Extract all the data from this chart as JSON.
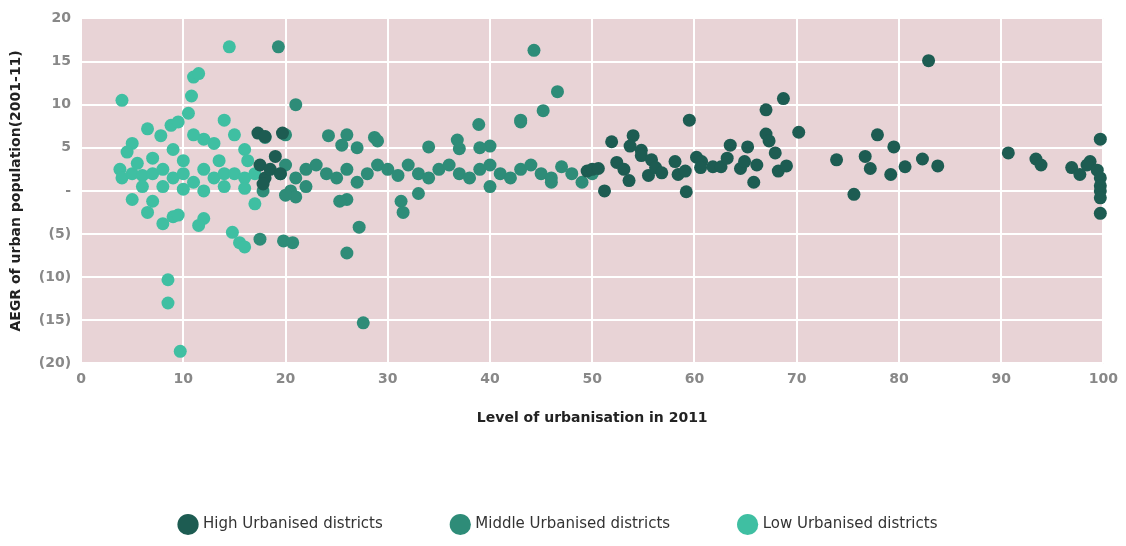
{
  "chart_data": {
    "type": "scatter",
    "xlabel": "Level of urbanisation in 2011",
    "ylabel": "AEGR of urban population(2001-11)",
    "xlim": [
      0,
      100
    ],
    "ylim": [
      -20,
      20
    ],
    "xticks": [
      0,
      10,
      20,
      30,
      40,
      50,
      60,
      70,
      80,
      90,
      100
    ],
    "yticks": [
      {
        "value": -20,
        "label": "(20)"
      },
      {
        "value": -15,
        "label": "(15)"
      },
      {
        "value": -10,
        "label": "(10)"
      },
      {
        "value": -5,
        "label": "(5)"
      },
      {
        "value": 0,
        "label": "-"
      },
      5,
      10,
      15,
      20
    ],
    "grid": true,
    "legend": "bottom",
    "marker": "circle",
    "series": [
      {
        "name": "High Urbanised districts",
        "color": "#1d5c52",
        "x": [
          17.3,
          18,
          19.7,
          17.5,
          18,
          18.5,
          19,
          19.5,
          17.8,
          49.5,
          50,
          50.6,
          51.2,
          52.4,
          53.1,
          53.6,
          55.5,
          51.9,
          54,
          53.7,
          54.8,
          54.8,
          55.8,
          56.2,
          56.8,
          58.1,
          58.4,
          59.1,
          59.2,
          59.5,
          60.2,
          60.7,
          60.6,
          61.8,
          62.6,
          63.2,
          63.5,
          64.5,
          64.9,
          65.2,
          65.8,
          66.1,
          67,
          68.7,
          67,
          67.3,
          67.9,
          68.2,
          69,
          70.2,
          73.9,
          75.6,
          76.7,
          77.2,
          77.9,
          79.2,
          79.5,
          80.6,
          82.3,
          82.9,
          83.8,
          90.7,
          93.4,
          93.9,
          96.9,
          97.7,
          98.7,
          98.4,
          99.4,
          99.7,
          99.7,
          99.7,
          99.7,
          99.7,
          99.7
        ],
        "values": [
          6.7,
          6.3,
          6.7,
          3,
          1.5,
          2.5,
          4,
          2,
          0.8,
          2.3,
          2.5,
          2.6,
          0,
          3.3,
          2.5,
          1.2,
          1.8,
          5.7,
          6.4,
          5.2,
          4.7,
          4.1,
          3.6,
          2.7,
          2.1,
          3.4,
          1.9,
          2.3,
          -0.1,
          8.2,
          3.9,
          3.4,
          2.7,
          2.8,
          2.8,
          3.8,
          5.3,
          2.6,
          3.4,
          5.1,
          1,
          3,
          9.4,
          10.7,
          6.6,
          5.8,
          4.4,
          2.3,
          2.9,
          6.8,
          3.6,
          -0.4,
          4,
          2.6,
          6.5,
          1.9,
          5.1,
          2.8,
          3.7,
          15.1,
          2.9,
          4.4,
          3.7,
          3,
          2.7,
          1.9,
          3.4,
          3,
          2.4,
          6,
          1.5,
          0.6,
          0,
          -0.8,
          -2.6
        ]
      },
      {
        "name": "Middle Urbanised districts",
        "color": "#2e8c78",
        "x": [
          19.3,
          21,
          44.3,
          46.6,
          45.2,
          43,
          43,
          38.9,
          24.2,
          26,
          28.7,
          25.5,
          27,
          29,
          34,
          36.8,
          37,
          40,
          39,
          20,
          18,
          19.5,
          20,
          21,
          22,
          23,
          24,
          25,
          26,
          27,
          28,
          29,
          30,
          31,
          32,
          33,
          34,
          35,
          36,
          37,
          38,
          39,
          40,
          41,
          42,
          43,
          44,
          45,
          46,
          47,
          48,
          49,
          50,
          20.5,
          22,
          26,
          31.3,
          31.5,
          25.3,
          27.2,
          26,
          27.6,
          21,
          33,
          40,
          46,
          17.5,
          19.8,
          20.7,
          17.8,
          20
        ],
        "values": [
          16.7,
          10,
          16.3,
          11.5,
          9.3,
          8,
          8.2,
          7.7,
          6.4,
          6.5,
          6.2,
          5.3,
          5,
          5.8,
          5.1,
          5.9,
          4.9,
          5.2,
          5,
          6.5,
          6.2,
          2,
          3,
          1.5,
          2.5,
          3,
          2,
          1.5,
          2.5,
          1,
          2,
          3,
          2.5,
          1.8,
          3,
          2,
          1.5,
          2.5,
          3,
          2,
          1.5,
          2.5,
          3,
          2,
          1.5,
          2.5,
          3,
          2,
          1.5,
          2.8,
          2,
          1,
          2,
          0,
          0.5,
          -1,
          -1.2,
          -2.5,
          -1.2,
          -4.2,
          -7.2,
          -15.3,
          -0.7,
          -0.3,
          0.5,
          1,
          -5.6,
          -5.8,
          -6,
          0,
          -0.5
        ]
      },
      {
        "name": "Low Urbanised districts",
        "color": "#3fbfa2",
        "x": [
          4,
          14.5,
          11,
          11.5,
          10.8,
          10.5,
          8.8,
          9.5,
          14,
          6.5,
          5,
          7.8,
          13,
          12,
          15,
          4.5,
          11,
          16,
          3.8,
          4,
          5,
          6,
          7,
          8,
          9,
          10,
          11,
          12,
          13,
          14,
          15,
          16,
          17,
          6,
          8,
          10,
          12,
          14,
          16,
          5,
          6.5,
          7,
          8,
          9,
          9.5,
          12,
          11.5,
          14.8,
          15.5,
          16,
          17,
          8.5,
          8.5,
          9.7,
          9,
          10,
          7,
          5.5,
          13.5,
          16.3
        ],
        "values": [
          10.5,
          16.7,
          13.2,
          13.6,
          11,
          9,
          7.6,
          8,
          8.2,
          7.2,
          5.5,
          6.4,
          5.5,
          6,
          6.5,
          4.5,
          6.5,
          4.8,
          2.5,
          1.5,
          2,
          1.8,
          2,
          2.5,
          1.5,
          2,
          1,
          2.5,
          1.5,
          2,
          2,
          1.5,
          2,
          0.5,
          0.5,
          0.2,
          0,
          0.5,
          0.3,
          -1,
          -2.5,
          -1.2,
          -3.8,
          -3,
          -2.8,
          -3.2,
          -4,
          -4.8,
          -6,
          -6.5,
          -1.5,
          -10.3,
          -13,
          -18.6,
          4.8,
          3.5,
          3.8,
          3.2,
          3.5,
          3.5
        ]
      }
    ]
  }
}
